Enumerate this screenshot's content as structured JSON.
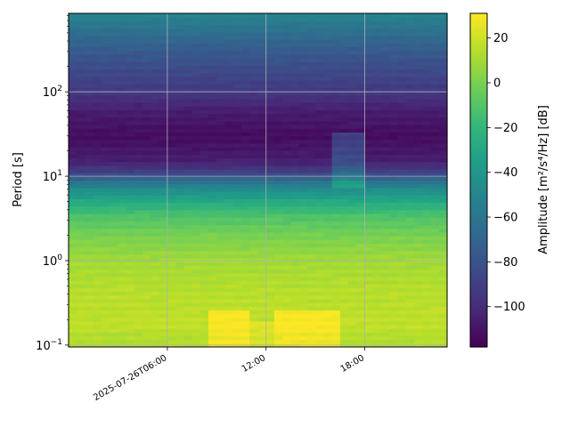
{
  "chart_data": {
    "type": "heatmap",
    "title": "",
    "xlabel": "",
    "ylabel": "Period [s]",
    "colorbar_label": "Amplitude [m²/s⁴/Hz] [dB]",
    "colormap": "viridis",
    "y_scale": "log",
    "ylim": [
      0.095,
      850
    ],
    "xlim": [
      "2025-07-26T00:00",
      "2025-07-26T23:00"
    ],
    "x_ticks": [
      {
        "t": "2025-07-26T06:00",
        "label": "2025-07-26T06:00"
      },
      {
        "t": "2025-07-26T12:00",
        "label": "12:00"
      },
      {
        "t": "2025-07-26T18:00",
        "label": "18:00"
      }
    ],
    "y_ticks": [
      {
        "value": 0.1,
        "base": "10",
        "exp": "−1"
      },
      {
        "value": 1,
        "base": "10",
        "exp": "0"
      },
      {
        "value": 10,
        "base": "10",
        "exp": "1"
      },
      {
        "value": 100,
        "base": "10",
        "exp": "2"
      }
    ],
    "colorbar_ticks": [
      20,
      0,
      -20,
      -40,
      -60,
      -80,
      -100
    ],
    "colorbar_tick_labels": [
      "20",
      "0",
      "−20",
      "−40",
      "−60",
      "−80",
      "−100"
    ],
    "clim": [
      -118,
      31
    ],
    "grid": true,
    "period_profile": [
      {
        "period": 0.095,
        "value": 14
      },
      {
        "period": 0.14,
        "value": 14
      },
      {
        "period": 0.16,
        "value": 17
      },
      {
        "period": 0.4,
        "value": 15
      },
      {
        "period": 1.0,
        "value": 10
      },
      {
        "period": 2.0,
        "value": 0
      },
      {
        "period": 3.5,
        "value": -12
      },
      {
        "period": 5.0,
        "value": -28
      },
      {
        "period": 7.0,
        "value": -45
      },
      {
        "period": 9.0,
        "value": -65
      },
      {
        "period": 11.0,
        "value": -88
      },
      {
        "period": 15.0,
        "value": -105
      },
      {
        "period": 30.0,
        "value": -113
      },
      {
        "period": 60.0,
        "value": -106
      },
      {
        "period": 100.0,
        "value": -93
      },
      {
        "period": 200.0,
        "value": -83
      },
      {
        "period": 400.0,
        "value": -70
      },
      {
        "period": 850.0,
        "value": -50
      }
    ],
    "anomalies": [
      {
        "t_start": "2025-07-26T08:30",
        "t_end": "2025-07-26T11:00",
        "period_min": 0.095,
        "period_max": 0.25,
        "delta": 14
      },
      {
        "t_start": "2025-07-26T11:00",
        "t_end": "2025-07-26T12:30",
        "period_min": 0.095,
        "period_max": 0.2,
        "delta": 8
      },
      {
        "t_start": "2025-07-26T12:30",
        "t_end": "2025-07-26T16:40",
        "period_min": 0.095,
        "period_max": 0.25,
        "delta": 14
      },
      {
        "t_start": "2025-07-26T16:00",
        "t_end": "2025-07-26T18:00",
        "period_min": 7,
        "period_max": 35,
        "delta": 22
      }
    ]
  }
}
